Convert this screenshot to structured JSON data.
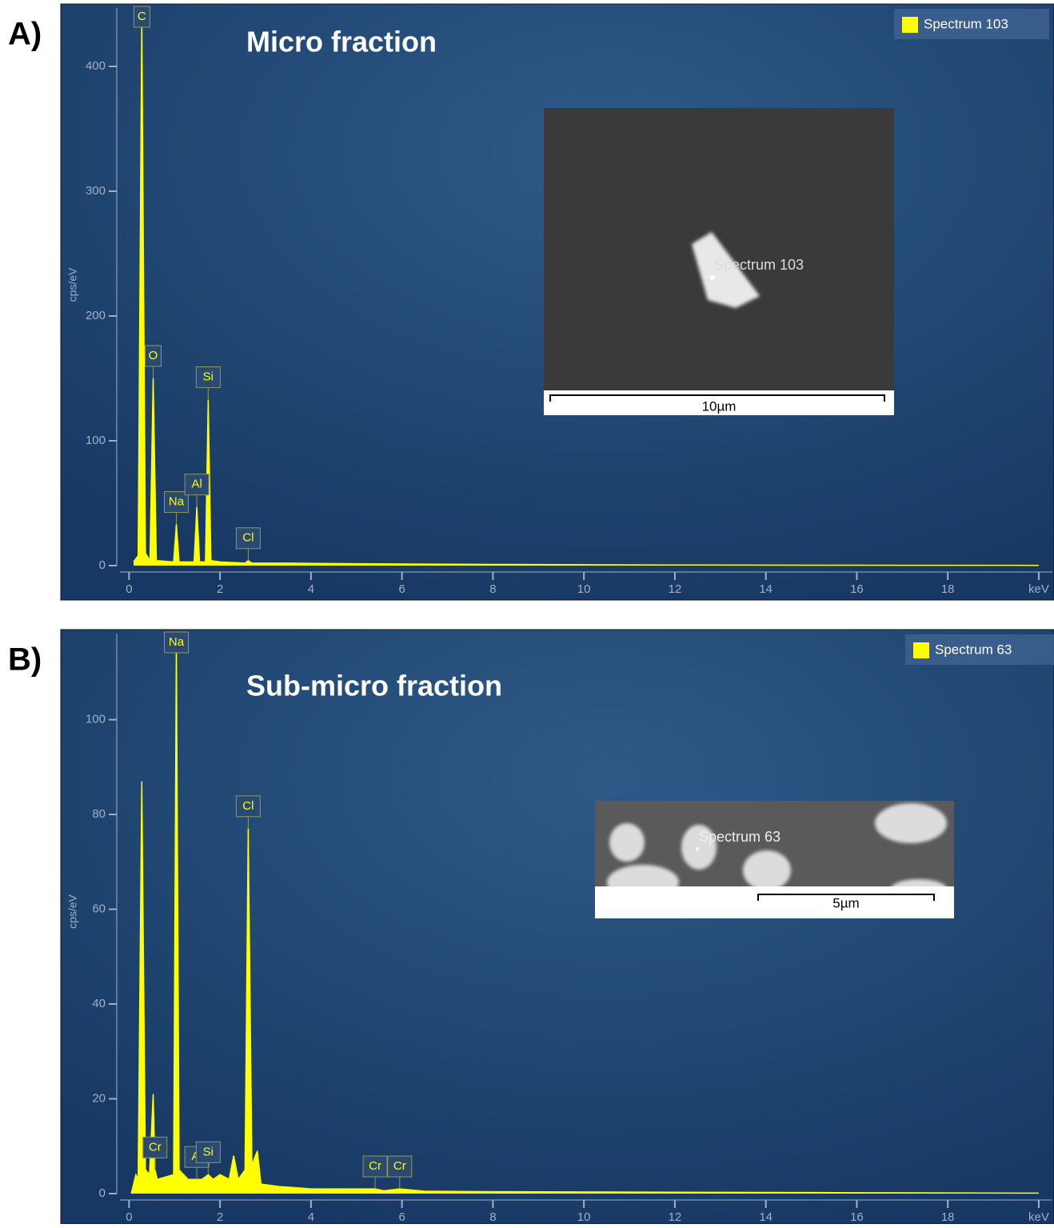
{
  "chart_data": [
    {
      "type": "area",
      "panel": "A)",
      "title": "Micro fraction",
      "ylabel": "cps/eV",
      "x": [
        0.1,
        0.2,
        0.28,
        0.36,
        0.46,
        0.53,
        0.6,
        0.98,
        1.04,
        1.1,
        1.43,
        1.49,
        1.55,
        1.68,
        1.74,
        1.8,
        2.0,
        2.55,
        2.62,
        2.7,
        3.5,
        5,
        8,
        12,
        16,
        20
      ],
      "series": [
        {
          "name": "Spectrum 103",
          "color": "#ffff00",
          "values": [
            3,
            8,
            440,
            10,
            4,
            150,
            4,
            3,
            33,
            3,
            3,
            47,
            3,
            3,
            133,
            4,
            3,
            2,
            4,
            2,
            2,
            1.5,
            1,
            0.5,
            0.3,
            0.2
          ]
        }
      ],
      "xlim": [
        -0.2,
        20.3
      ],
      "ylim": [
        0,
        450
      ],
      "xticks": [
        0,
        2,
        4,
        6,
        8,
        10,
        12,
        14,
        16,
        18,
        {
          "value": 20,
          "label": "keV"
        }
      ],
      "yticks": [
        0,
        100,
        200,
        300,
        400
      ],
      "peak_labels": [
        {
          "label": "C",
          "x": 0.28
        },
        {
          "label": "O",
          "x": 0.53
        },
        {
          "label": "Na",
          "x": 1.04
        },
        {
          "label": "Al",
          "x": 1.49
        },
        {
          "label": "Si",
          "x": 1.74
        },
        {
          "label": "Cl",
          "x": 2.62
        }
      ],
      "inset": {
        "spot_label": "Spectrum 103",
        "scale_bar": "10µm"
      }
    },
    {
      "type": "area",
      "panel": "B)",
      "title": "Sub-micro fraction",
      "ylabel": "cps/eV",
      "x": [
        0.05,
        0.15,
        0.2,
        0.28,
        0.36,
        0.45,
        0.53,
        0.57,
        0.62,
        0.98,
        1.04,
        1.1,
        1.3,
        1.49,
        1.6,
        1.74,
        1.85,
        2.0,
        2.2,
        2.3,
        2.4,
        2.55,
        2.62,
        2.7,
        2.82,
        2.9,
        3.3,
        4,
        5.41,
        5.6,
        5.95,
        6.5,
        8,
        12,
        16,
        20
      ],
      "series": [
        {
          "name": "Spectrum 63",
          "color": "#ffff00",
          "values": [
            0,
            4,
            3,
            87,
            5,
            4,
            21,
            5,
            3,
            4,
            117,
            5,
            3,
            3,
            3,
            4,
            3,
            4,
            3,
            8,
            3,
            5,
            77,
            6,
            9,
            2,
            1.5,
            1,
            1,
            0.6,
            1,
            0.5,
            0.4,
            0.3,
            0.2,
            0.1
          ]
        }
      ],
      "xlim": [
        -0.2,
        20.3
      ],
      "ylim": [
        0,
        119
      ],
      "xticks": [
        0,
        2,
        4,
        6,
        8,
        10,
        12,
        14,
        16,
        18,
        {
          "value": 20,
          "label": "keV"
        }
      ],
      "yticks": [
        0,
        20,
        40,
        60,
        80,
        100
      ],
      "peak_labels": [
        {
          "label": "Na",
          "x": 1.04
        },
        {
          "label": "Cl",
          "x": 2.62
        },
        {
          "label": "Cr",
          "x": 0.57
        },
        {
          "label": "Al",
          "x": 1.49
        },
        {
          "label": "Si",
          "x": 1.74
        },
        {
          "label": "Cr",
          "x": 5.41
        },
        {
          "label": "Cr",
          "x": 5.95
        }
      ],
      "inset": {
        "spot_label": "Spectrum 63",
        "scale_bar": "5µm"
      }
    }
  ]
}
